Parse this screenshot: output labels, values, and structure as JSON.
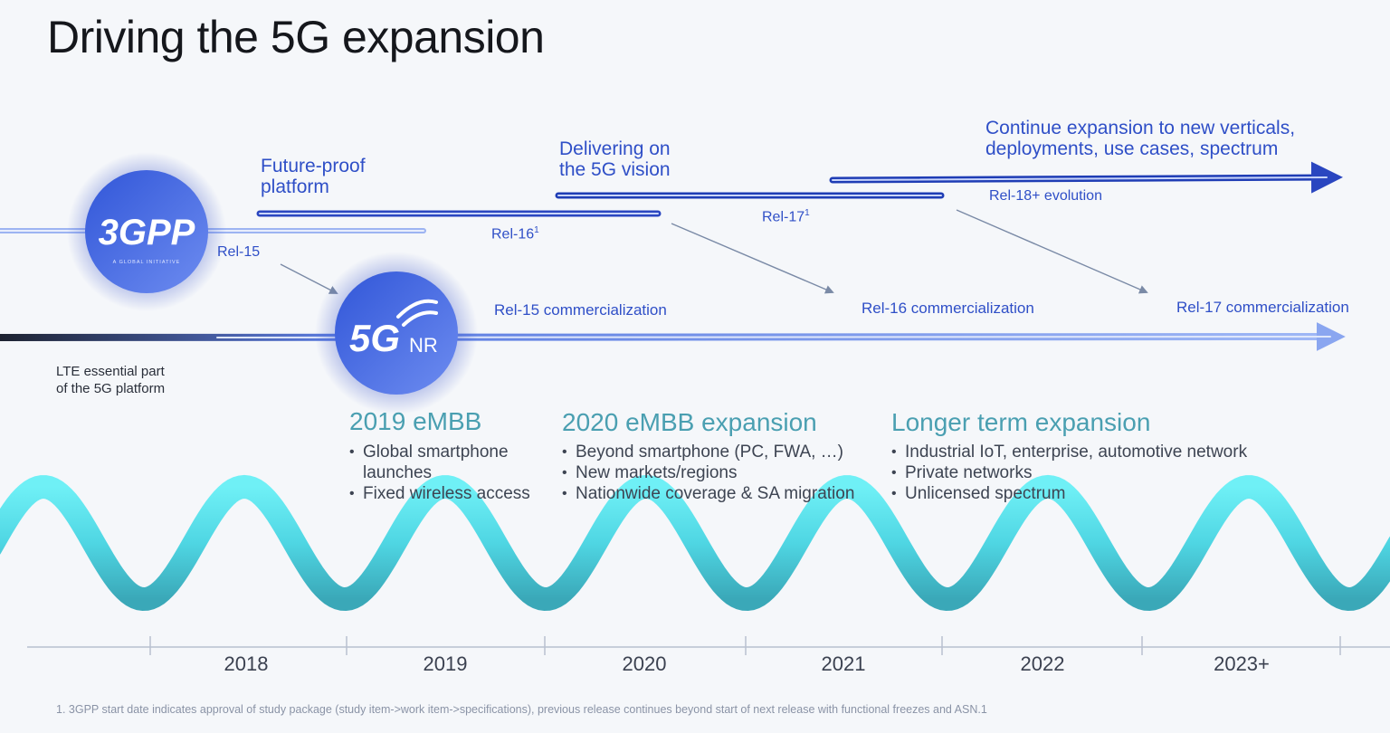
{
  "title": "Driving the 5G expansion",
  "phases": {
    "future_proof": "Future-proof\nplatform",
    "delivering": "Delivering on\nthe 5G vision",
    "continue": "Continue expansion to new verticals,\ndeployments, use cases, spectrum"
  },
  "releases": {
    "rel15": "Rel-15",
    "rel16": "Rel-16",
    "rel17": "Rel-17",
    "rel18": "Rel-18+ evolution",
    "footnote_mark": "1"
  },
  "commercialization": {
    "rel15": "Rel-15 commercialization",
    "rel16": "Rel-16 commercialization",
    "rel17": "Rel-17 commercialization"
  },
  "logos": {
    "threegpp": "3GPP",
    "threegpp_tagline": "A GLOBAL INITIATIVE",
    "fiveg": "5G",
    "nr": "NR"
  },
  "lte_note": "LTE essential part\nof the 5G platform",
  "sections": [
    {
      "title": "2019 eMBB",
      "bullets": [
        "Global smartphone\nlaunches",
        "Fixed wireless access"
      ]
    },
    {
      "title": "2020 eMBB expansion",
      "bullets": [
        "Beyond smartphone (PC, FWA, …)",
        "New markets/regions",
        "Nationwide coverage & SA migration"
      ]
    },
    {
      "title": "Longer term expansion",
      "bullets": [
        "Industrial IoT, enterprise, automotive network",
        "Private networks",
        "Unlicensed spectrum"
      ]
    }
  ],
  "years": [
    "2018",
    "2019",
    "2020",
    "2021",
    "2022",
    "2023+"
  ],
  "footnote": "1. 3GPP start date indicates approval of study package (study item->work item->specifications), previous release continues beyond start of next release with functional freezes and ASN.1",
  "colors": {
    "accent": "#2f4fc7",
    "section_title": "#4a9fb1",
    "wave": "#5ee0ec",
    "timeline": "#b8c0d0"
  }
}
